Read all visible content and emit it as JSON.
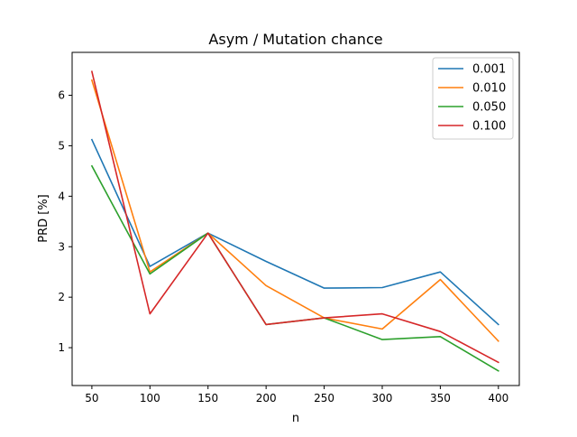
{
  "chart_data": {
    "type": "line",
    "title": "Asym / Mutation chance",
    "xlabel": "n",
    "ylabel": "PRD [%]",
    "x": [
      50,
      100,
      150,
      200,
      250,
      300,
      350,
      400
    ],
    "xlim": [
      33,
      418
    ],
    "ylim": [
      0.25,
      6.85
    ],
    "xticks": [
      50,
      100,
      150,
      200,
      250,
      300,
      350,
      400
    ],
    "yticks": [
      1,
      2,
      3,
      4,
      5,
      6
    ],
    "grid": false,
    "legend_position": "top-right",
    "series": [
      {
        "name": "0.001",
        "color": "#1f77b4",
        "values": [
          5.12,
          2.61,
          3.27,
          2.71,
          2.18,
          2.19,
          2.5,
          1.46
        ]
      },
      {
        "name": "0.010",
        "color": "#ff7f0e",
        "values": [
          6.3,
          2.5,
          3.27,
          2.23,
          1.59,
          1.37,
          2.35,
          1.13
        ]
      },
      {
        "name": "0.050",
        "color": "#2ca02c",
        "values": [
          4.6,
          2.46,
          3.27,
          1.46,
          1.59,
          1.16,
          1.22,
          0.54
        ]
      },
      {
        "name": "0.100",
        "color": "#d62728",
        "values": [
          6.47,
          1.67,
          3.27,
          1.46,
          1.59,
          1.67,
          1.32,
          0.71
        ]
      }
    ]
  }
}
